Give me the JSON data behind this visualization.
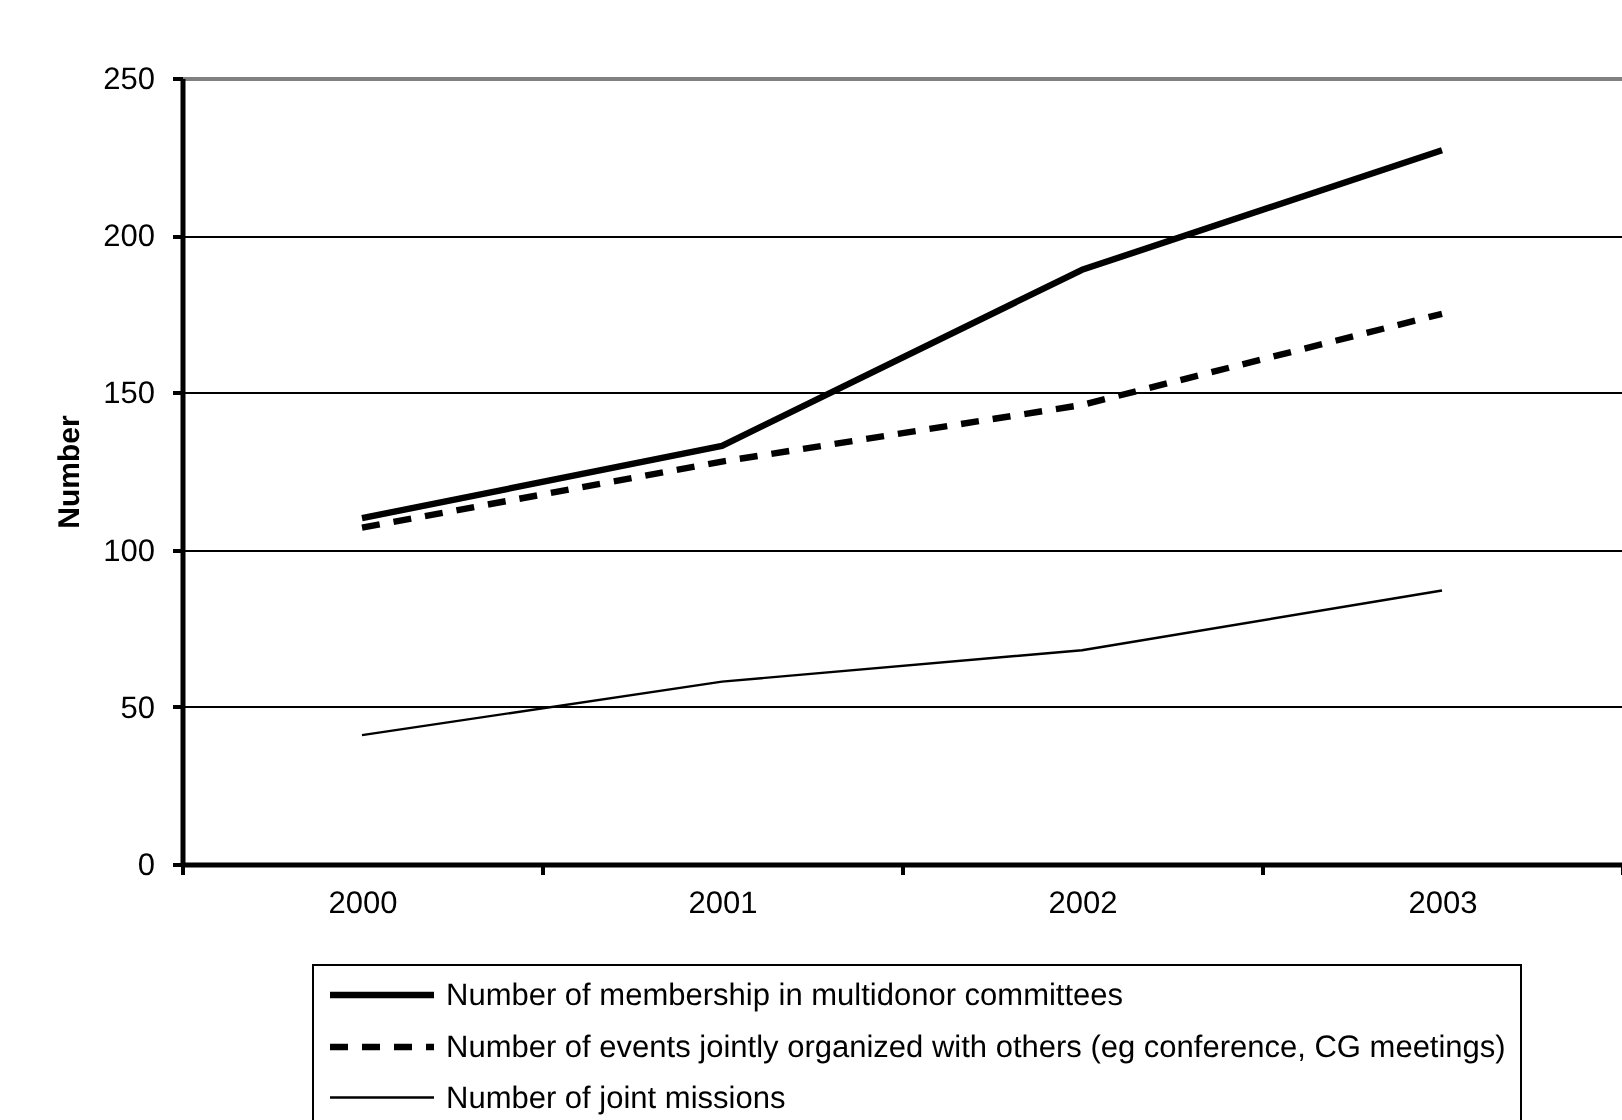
{
  "chart_data": {
    "type": "line",
    "ylabel": "Number",
    "categories": [
      "2000",
      "2001",
      "2002",
      "2003"
    ],
    "series": [
      {
        "name": "Number of membership in multidonor committees",
        "color": "#000000",
        "line_style": "solid",
        "values": [
          110,
          133,
          189,
          227
        ]
      },
      {
        "name": "Number of events jointly organized with others (eg conference, CG meetings)",
        "color": "#000000",
        "line_style": "dashed",
        "values": [
          107,
          128,
          146,
          175
        ]
      },
      {
        "name": "Number of joint missions",
        "color": "#000000",
        "line_style": "solid",
        "values": [
          41,
          58,
          68,
          87
        ]
      }
    ],
    "ylim": [
      0,
      250
    ],
    "yticks": [
      0,
      50,
      100,
      150,
      200,
      250
    ],
    "grid": "y",
    "legend": "bottom"
  }
}
